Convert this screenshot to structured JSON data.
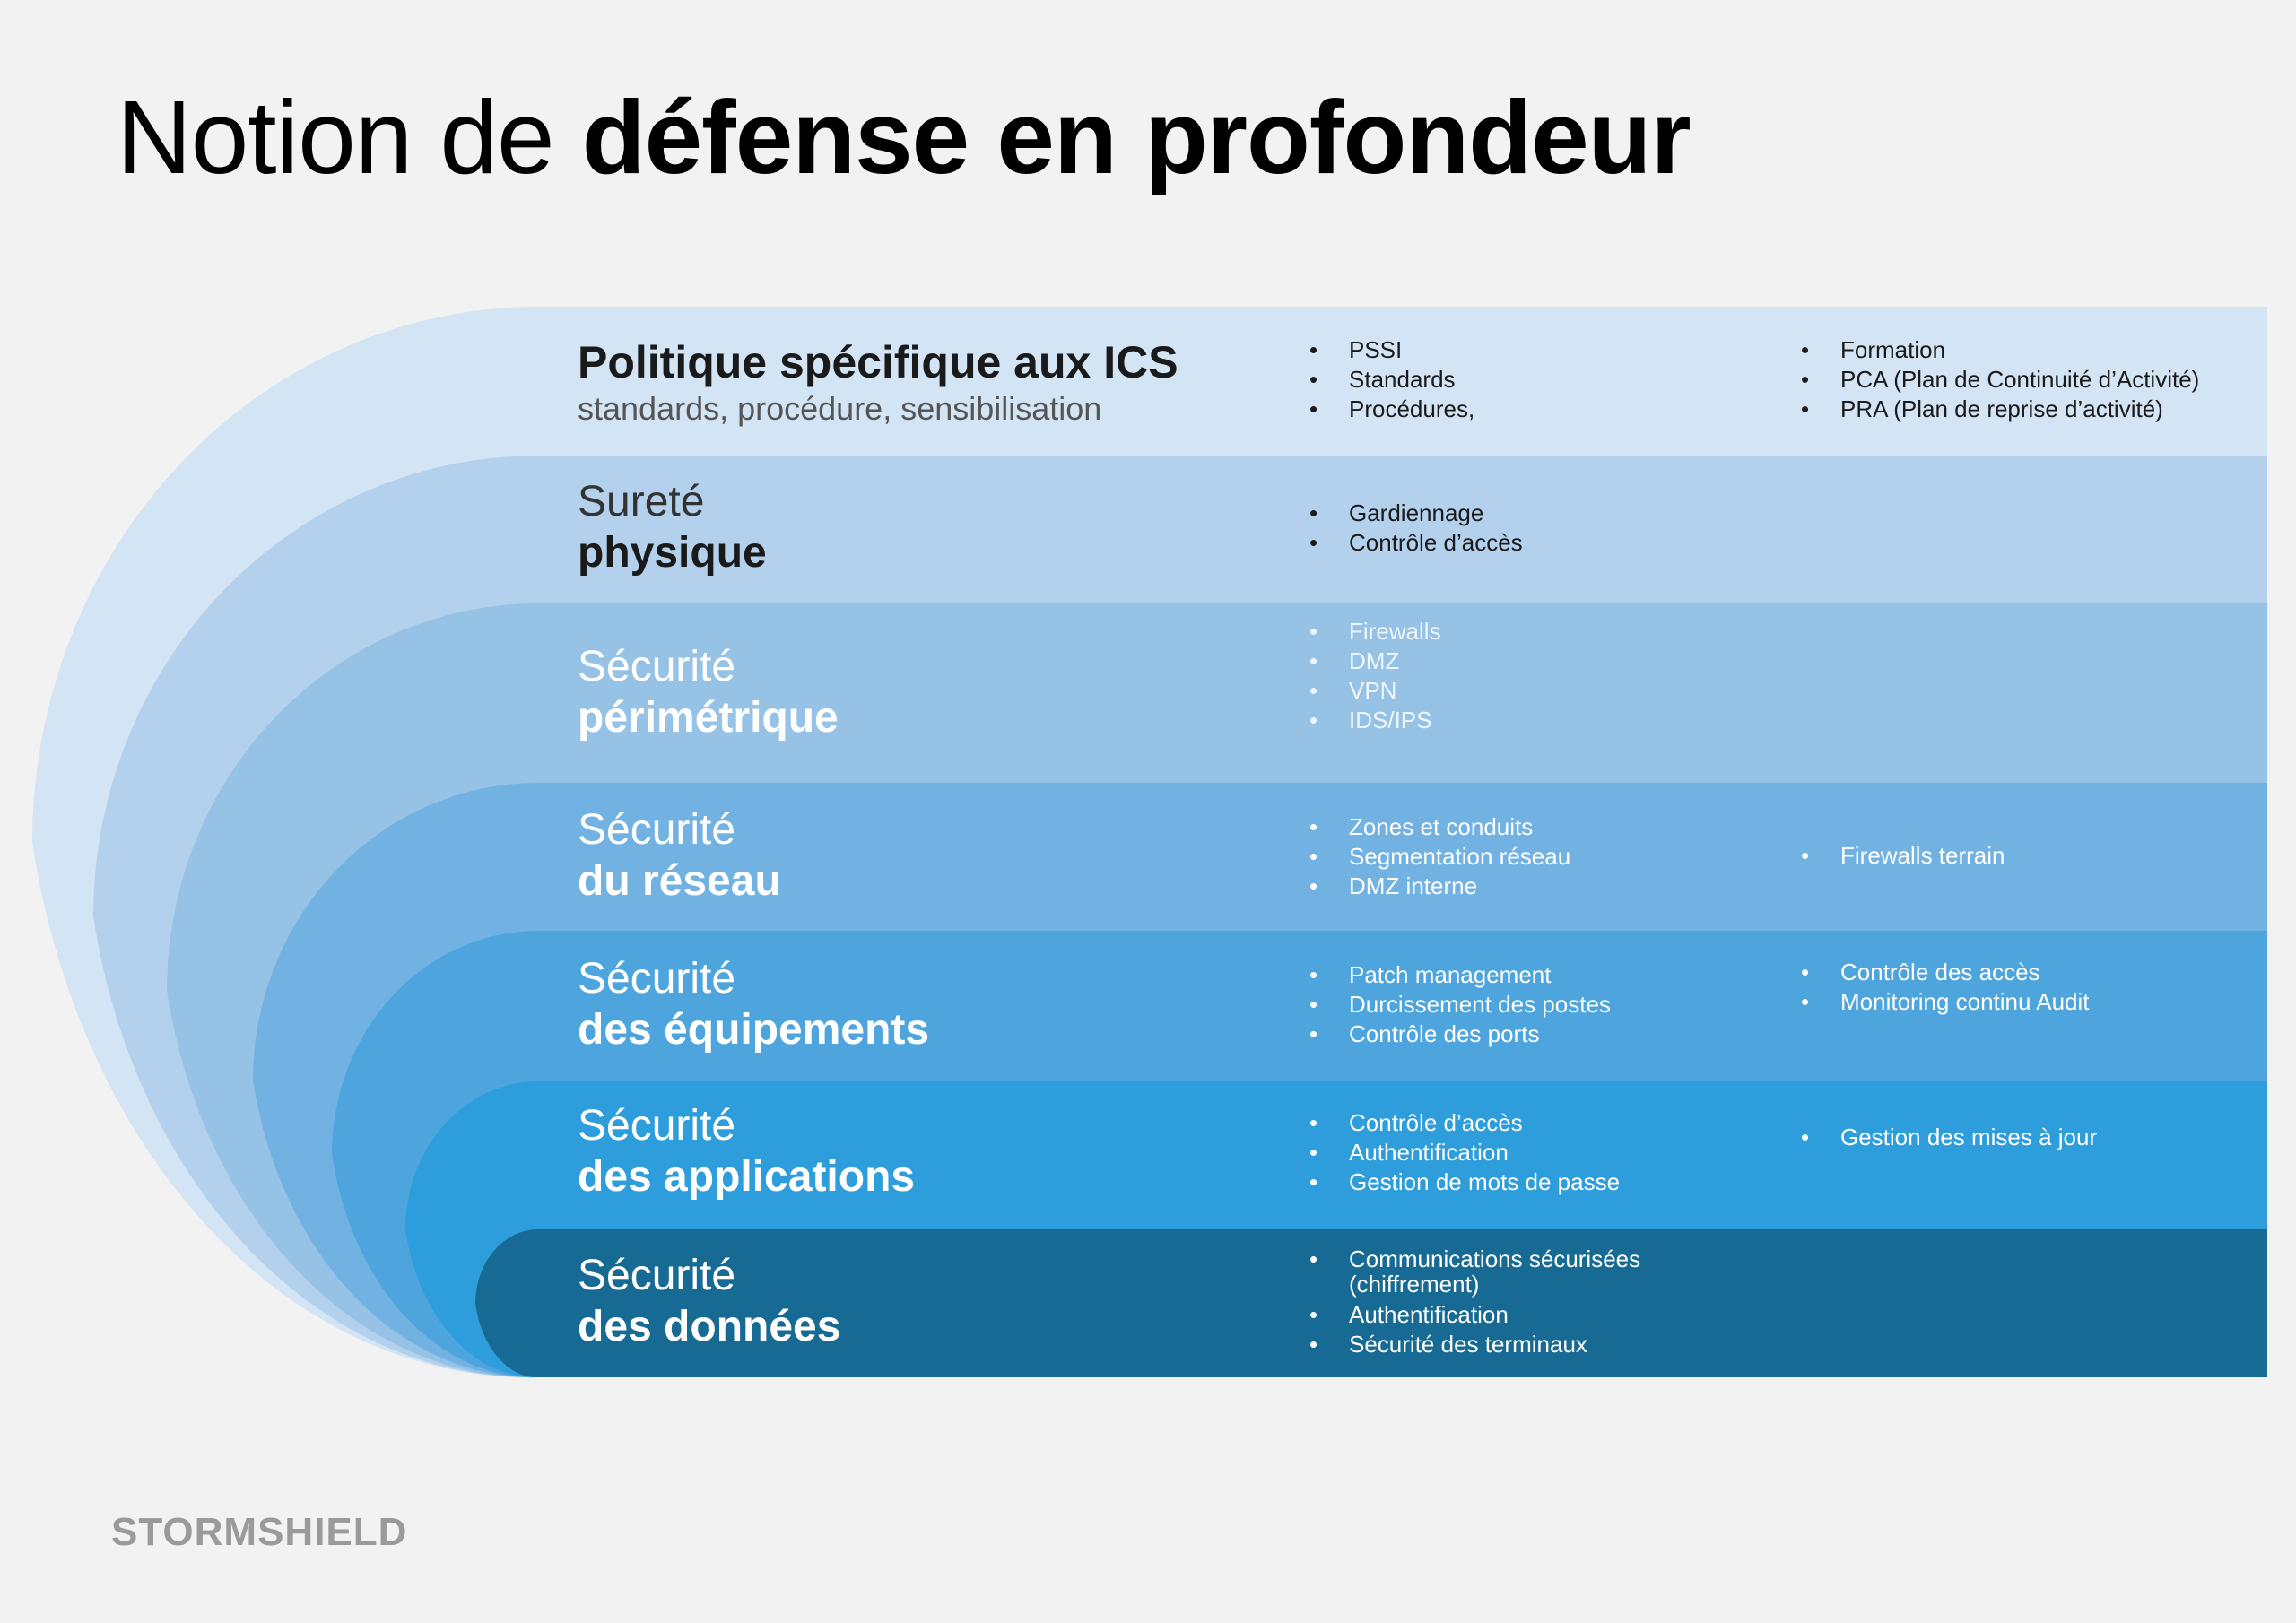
{
  "title": {
    "light": "Notion de ",
    "bold": "défense en profondeur"
  },
  "logo": "STORMSHIELD",
  "layers": [
    {
      "line1": "Politique spécifique aux ICS",
      "line2": "standards, procédure, sensibilisation",
      "color": "#d3e4f4",
      "col1": [
        "PSSI",
        "Standards",
        "Procédures,"
      ],
      "col2": [
        "Formation",
        "PCA (Plan de Continuité d’Activité)",
        "PRA (Plan de reprise d’activité)"
      ]
    },
    {
      "line1": "Sureté",
      "line2": "physique",
      "color": "#b3d1ec",
      "col1": [
        "Gardiennage",
        "Contrôle d’accès"
      ],
      "col2": []
    },
    {
      "line1": "Sécurité",
      "line2": "périmétrique",
      "color": "#96c2e6",
      "col1": [
        "Firewalls",
        "DMZ",
        "VPN",
        "IDS/IPS"
      ],
      "col2": []
    },
    {
      "line1": "Sécurité",
      "line2": "du réseau",
      "color": "#72b2e2",
      "col1": [
        "Zones et conduits",
        "Segmentation réseau",
        "DMZ interne"
      ],
      "col2": [
        "Firewalls terrain"
      ]
    },
    {
      "line1": "Sécurité",
      "line2": "des équipements",
      "color": "#4ea5dd",
      "col1": [
        "Patch management",
        "Durcissement des postes",
        "Contrôle des ports"
      ],
      "col2": [
        "Contrôle des accès",
        "Monitoring continu Audit"
      ]
    },
    {
      "line1": "Sécurité",
      "line2": "des applications",
      "color": "#2e9ddb",
      "col1": [
        "Contrôle d’accès",
        "Authentification",
        "Gestion de mots de passe"
      ],
      "col2": [
        "Gestion des mises à jour"
      ]
    },
    {
      "line1": "Sécurité",
      "line2": "des données",
      "color": "#176a93",
      "col1": [
        "Communications sécurisées (chiffrement)",
        "Authentification",
        "Sécurité des terminaux"
      ],
      "col2": []
    }
  ]
}
